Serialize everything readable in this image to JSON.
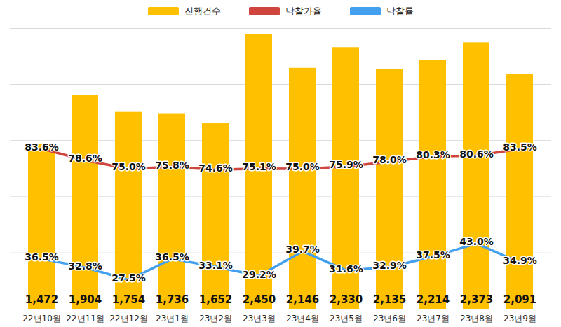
{
  "chart_data": {
    "type": "bar",
    "categories": [
      "22년10월",
      "22년11월",
      "22년12월",
      "23년1월",
      "23년2월",
      "23년3월",
      "23년4월",
      "23년5월",
      "23년6월",
      "23년7월",
      "23년8월",
      "23년9월"
    ],
    "series": [
      {
        "name": "진행건수",
        "type": "bar",
        "color": "#FFC000",
        "values": [
          1472,
          1904,
          1754,
          1736,
          1652,
          2450,
          2146,
          2330,
          2135,
          2214,
          2373,
          2091
        ],
        "value_labels": [
          "1,472",
          "1,904",
          "1,754",
          "1,736",
          "1,652",
          "2,450",
          "2,146",
          "2,330",
          "2,135",
          "2,214",
          "2,373",
          "2,091"
        ]
      },
      {
        "name": "낙찰가율",
        "type": "line",
        "axis": "y2",
        "color": "#D0443E",
        "values": [
          83.6,
          78.6,
          75.0,
          75.8,
          74.6,
          75.1,
          75.0,
          75.9,
          78.0,
          80.3,
          80.6,
          83.5
        ],
        "value_labels": [
          "83.6%",
          "78.6%",
          "75.0%",
          "75.8%",
          "74.6%",
          "75.1%",
          "75.0%",
          "75.9%",
          "78.0%",
          "80.3%",
          "80.6%",
          "83.5%"
        ]
      },
      {
        "name": "낙찰률",
        "type": "line",
        "axis": "y2",
        "color": "#42A0EE",
        "values": [
          36.5,
          32.8,
          27.5,
          36.5,
          33.1,
          29.2,
          39.7,
          31.6,
          32.9,
          37.5,
          43.0,
          34.9
        ],
        "value_labels": [
          "36.5%",
          "32.8%",
          "27.5%",
          "36.5%",
          "33.1%",
          "29.2%",
          "39.7%",
          "31.6%",
          "32.9%",
          "37.5%",
          "43.0%",
          "34.9%"
        ]
      }
    ],
    "ylim": [
      0,
      2500
    ],
    "yticks": [
      0,
      500,
      1000,
      1500,
      2000,
      2500
    ],
    "y2lim": [
      15,
      135
    ],
    "y2ticks": [
      15,
      39,
      63,
      87,
      111,
      135
    ],
    "grid": true,
    "data_labels": true,
    "tick_labels": "x",
    "legend": "top"
  }
}
